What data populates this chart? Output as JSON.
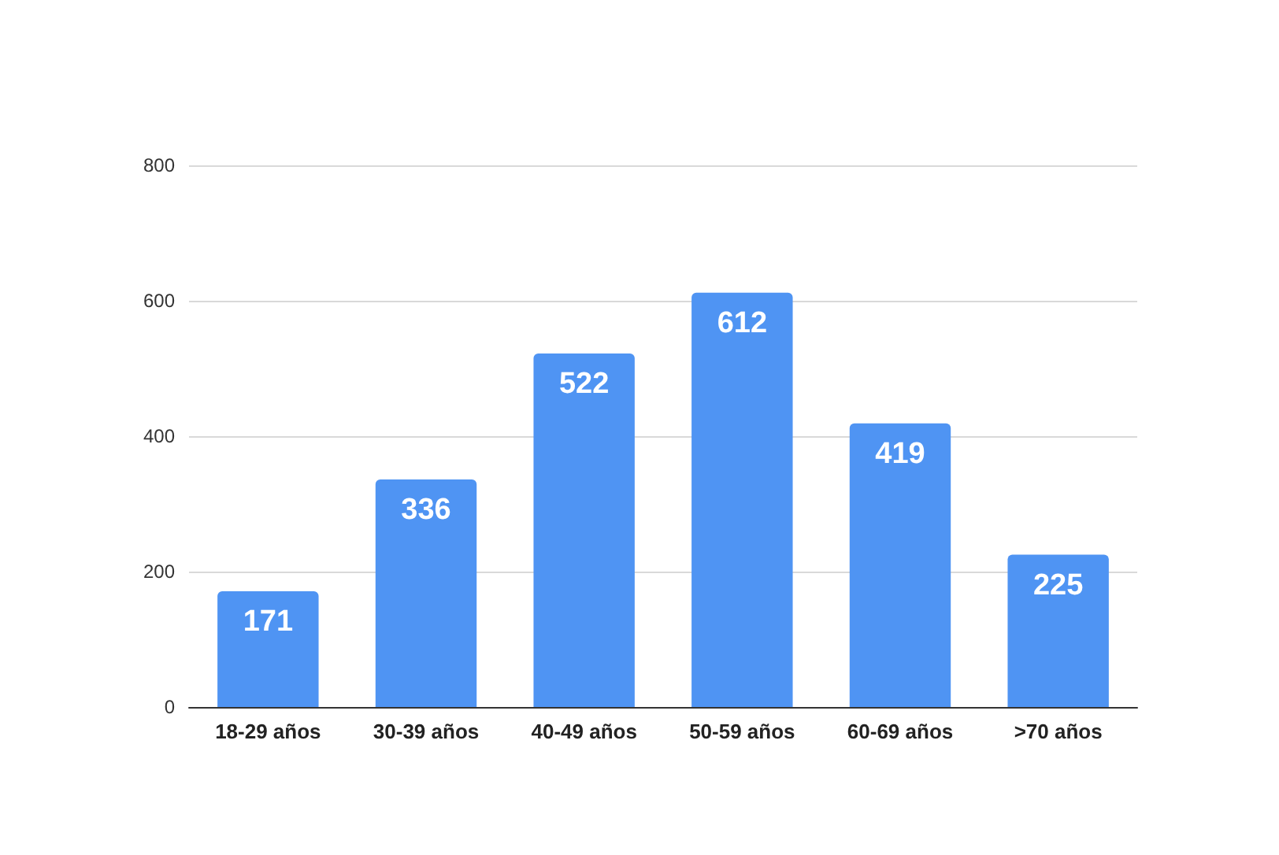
{
  "chart_data": {
    "type": "bar",
    "categories": [
      "18-29 años",
      "30-39 años",
      "40-49 años",
      "50-59 años",
      "60-69 años",
      ">70 años"
    ],
    "values": [
      171,
      336,
      522,
      612,
      419,
      225
    ],
    "color": "#4f94f3",
    "ylim": [
      0,
      800
    ],
    "yticks": [
      0,
      200,
      400,
      600,
      800
    ],
    "grid": "y",
    "data_labels": true
  }
}
